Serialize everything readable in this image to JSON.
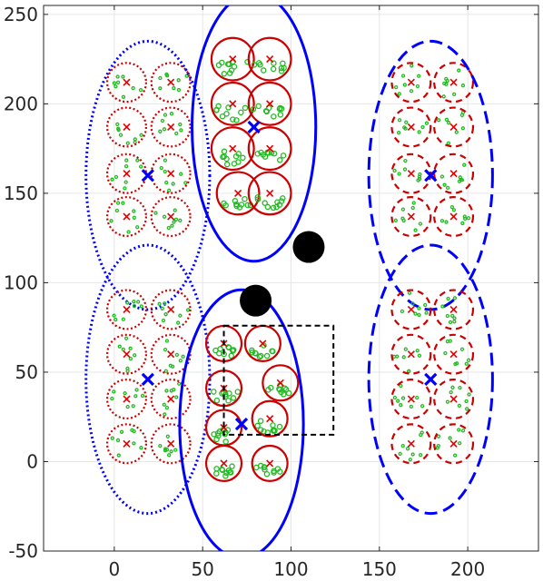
{
  "chart_data": {
    "type": "scatter",
    "title": "",
    "xlabel": "",
    "ylabel": "",
    "xlim": [
      -40,
      240
    ],
    "ylim": [
      -50,
      255
    ],
    "grid": true,
    "x_ticks": [
      0,
      50,
      100,
      150,
      200
    ],
    "y_ticks": [
      -50,
      0,
      50,
      100,
      150,
      200,
      250
    ],
    "colors": {
      "cluster_ellipse": "#0000ff",
      "subcluster_circle": "#cc0000",
      "subcluster_center": "#e00000",
      "cluster_center": "#0000ff",
      "member_points": "#22bb22",
      "obstacle": "#000000",
      "rectangle": "#000000",
      "grid": "#e6e6e6"
    },
    "obstacles": [
      {
        "x": 110,
        "y": 120,
        "r": 9
      },
      {
        "x": 80,
        "y": 90,
        "r": 9
      }
    ],
    "rectangle": {
      "x0": 62,
      "y0": 15,
      "x1": 124,
      "y1": 76,
      "style": "dashed"
    },
    "clusters": [
      {
        "style": "dotted",
        "center": {
          "x": 19,
          "y": 160
        },
        "ellipse": {
          "rx": 35,
          "ry": 75
        },
        "members": [
          {
            "x": 7,
            "y": 212,
            "r": 11
          },
          {
            "x": 32,
            "y": 212,
            "r": 11
          },
          {
            "x": 7,
            "y": 187,
            "r": 11
          },
          {
            "x": 32,
            "y": 187,
            "r": 11
          },
          {
            "x": 7,
            "y": 161,
            "r": 11
          },
          {
            "x": 32,
            "y": 161,
            "r": 11
          },
          {
            "x": 7,
            "y": 137,
            "r": 11
          },
          {
            "x": 32,
            "y": 137,
            "r": 11
          }
        ]
      },
      {
        "style": "solid",
        "center": {
          "x": 79,
          "y": 187
        },
        "ellipse": {
          "rx": 35,
          "ry": 75
        },
        "members": [
          {
            "x": 67,
            "y": 225,
            "r": 12
          },
          {
            "x": 88,
            "y": 225,
            "r": 12
          },
          {
            "x": 67,
            "y": 200,
            "r": 12
          },
          {
            "x": 88,
            "y": 200,
            "r": 12
          },
          {
            "x": 67,
            "y": 175,
            "r": 12
          },
          {
            "x": 88,
            "y": 175,
            "r": 12
          },
          {
            "x": 70,
            "y": 150,
            "r": 12
          },
          {
            "x": 88,
            "y": 150,
            "r": 12
          }
        ]
      },
      {
        "style": "dashed",
        "center": {
          "x": 179,
          "y": 160
        },
        "ellipse": {
          "rx": 35,
          "ry": 75
        },
        "members": [
          {
            "x": 168,
            "y": 212,
            "r": 11
          },
          {
            "x": 192,
            "y": 212,
            "r": 11
          },
          {
            "x": 168,
            "y": 187,
            "r": 11
          },
          {
            "x": 192,
            "y": 187,
            "r": 11
          },
          {
            "x": 168,
            "y": 161,
            "r": 11
          },
          {
            "x": 192,
            "y": 161,
            "r": 11
          },
          {
            "x": 168,
            "y": 137,
            "r": 11
          },
          {
            "x": 192,
            "y": 137,
            "r": 11
          }
        ]
      },
      {
        "style": "dotted",
        "center": {
          "x": 19,
          "y": 46
        },
        "ellipse": {
          "rx": 35,
          "ry": 75
        },
        "members": [
          {
            "x": 7,
            "y": 85,
            "r": 11
          },
          {
            "x": 32,
            "y": 85,
            "r": 11
          },
          {
            "x": 7,
            "y": 60,
            "r": 11
          },
          {
            "x": 32,
            "y": 60,
            "r": 11
          },
          {
            "x": 7,
            "y": 35,
            "r": 11
          },
          {
            "x": 32,
            "y": 35,
            "r": 11
          },
          {
            "x": 7,
            "y": 10,
            "r": 11
          },
          {
            "x": 32,
            "y": 10,
            "r": 11
          }
        ]
      },
      {
        "style": "solid",
        "center": {
          "x": 72,
          "y": 21
        },
        "ellipse": {
          "rx": 35,
          "ry": 75
        },
        "members": [
          {
            "x": 62,
            "y": 66,
            "r": 10
          },
          {
            "x": 84,
            "y": 66,
            "r": 10
          },
          {
            "x": 62,
            "y": 41,
            "r": 10
          },
          {
            "x": 94,
            "y": 44,
            "r": 10
          },
          {
            "x": 62,
            "y": 19,
            "r": 10
          },
          {
            "x": 88,
            "y": 24,
            "r": 10
          },
          {
            "x": 62,
            "y": -1,
            "r": 10
          },
          {
            "x": 88,
            "y": -1,
            "r": 10
          }
        ]
      },
      {
        "style": "dashed",
        "center": {
          "x": 179,
          "y": 46
        },
        "ellipse": {
          "rx": 35,
          "ry": 75
        },
        "members": [
          {
            "x": 168,
            "y": 85,
            "r": 11
          },
          {
            "x": 192,
            "y": 85,
            "r": 11
          },
          {
            "x": 168,
            "y": 60,
            "r": 11
          },
          {
            "x": 192,
            "y": 60,
            "r": 11
          },
          {
            "x": 168,
            "y": 35,
            "r": 11
          },
          {
            "x": 192,
            "y": 35,
            "r": 11
          },
          {
            "x": 168,
            "y": 10,
            "r": 11
          },
          {
            "x": 192,
            "y": 10,
            "r": 11
          }
        ]
      }
    ]
  }
}
